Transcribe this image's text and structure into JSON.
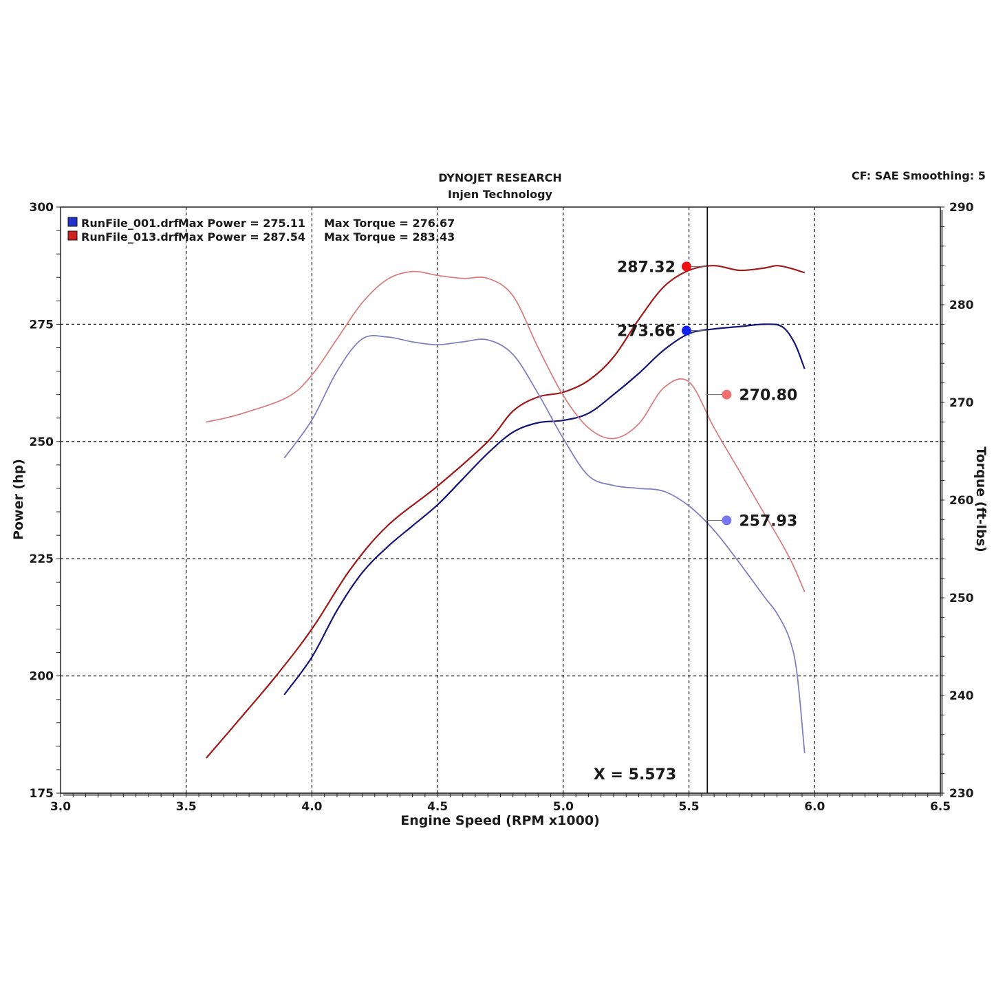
{
  "header": {
    "title": "DYNOJET RESEARCH",
    "subtitle": "Injen Technology",
    "info": "CF: SAE  Smoothing: 5"
  },
  "legend": [
    {
      "swatch": "#2233cc",
      "file": "RunFile_001.drf",
      "power": "Max Power = 275.11",
      "torque": "Max Torque = 276.67"
    },
    {
      "swatch": "#cc2222",
      "file": "RunFile_013.drf",
      "power": "Max Power = 287.54",
      "torque": "Max Torque = 283.43"
    }
  ],
  "cursor": {
    "label": "X = 5.573",
    "x": 5.573
  },
  "callouts": [
    {
      "text": "287.32",
      "color": "#ee1111"
    },
    {
      "text": "273.66",
      "color": "#1122ee"
    },
    {
      "text": "270.80",
      "color": "#f07070"
    },
    {
      "text": "257.93",
      "color": "#7777ee"
    }
  ],
  "chart_data": {
    "type": "line",
    "title": "DYNOJET RESEARCH",
    "subtitle": "Injen Technology",
    "xlabel": "Engine Speed (RPM x1000)",
    "ylabel": "Power (hp)",
    "y2label": "Torque (ft-lbs)",
    "xlim": [
      3.0,
      6.5
    ],
    "ylim": [
      175,
      300
    ],
    "y2lim": [
      230,
      290
    ],
    "x_ticks": [
      "3.0",
      "3.5",
      "4.0",
      "4.5",
      "5.0",
      "5.5",
      "6.0",
      "6.5"
    ],
    "y_ticks": [
      "175",
      "200",
      "225",
      "250",
      "275",
      "300"
    ],
    "y2_ticks": [
      "230",
      "240",
      "250",
      "260",
      "270",
      "280",
      "290"
    ],
    "grid": true,
    "legend_position": "top-left",
    "series": [
      {
        "name": "RunFile_013.drf",
        "quantity": "power",
        "axis": "left",
        "color": "#a01818",
        "width": 2.2,
        "x": [
          3.58,
          3.7,
          3.85,
          4.0,
          4.15,
          4.3,
          4.5,
          4.7,
          4.8,
          4.9,
          5.0,
          5.1,
          5.2,
          5.3,
          5.4,
          5.5,
          5.6,
          5.7,
          5.8,
          5.85,
          5.9,
          5.96
        ],
        "y": [
          182.5,
          190,
          199.5,
          210,
          222.5,
          232,
          240.5,
          250,
          256.5,
          259.5,
          260.5,
          263,
          268,
          276,
          283,
          286.5,
          287.5,
          286.5,
          287,
          287.5,
          287,
          286
        ]
      },
      {
        "name": "RunFile_001.drf",
        "quantity": "power",
        "axis": "left",
        "color": "#141478",
        "width": 2.2,
        "x": [
          3.89,
          4.0,
          4.1,
          4.2,
          4.3,
          4.4,
          4.5,
          4.6,
          4.7,
          4.8,
          4.9,
          5.0,
          5.1,
          5.2,
          5.3,
          5.4,
          5.5,
          5.6,
          5.7,
          5.8,
          5.87,
          5.92,
          5.96
        ],
        "y": [
          196,
          204,
          214,
          222,
          227.5,
          232,
          236.5,
          242,
          247.5,
          252,
          254,
          254.5,
          256,
          260,
          264.5,
          269.5,
          273,
          274,
          274.5,
          275,
          274.5,
          271,
          265.5
        ]
      },
      {
        "name": "RunFile_013.drf",
        "quantity": "torque",
        "axis": "right",
        "color": "#d88080",
        "width": 1.8,
        "x": [
          3.58,
          3.7,
          3.9,
          4.0,
          4.1,
          4.2,
          4.3,
          4.4,
          4.5,
          4.6,
          4.7,
          4.8,
          4.9,
          5.0,
          5.1,
          5.2,
          5.3,
          5.4,
          5.5,
          5.6,
          5.7,
          5.8,
          5.9,
          5.96
        ],
        "y": [
          268,
          268.7,
          270.5,
          272.8,
          276.5,
          280.2,
          282.6,
          283.4,
          283,
          282.7,
          282.7,
          280.9,
          275.6,
          270.7,
          267.4,
          266.3,
          267.8,
          271.5,
          272.1,
          267.4,
          263,
          258.6,
          254.1,
          250.6
        ]
      },
      {
        "name": "RunFile_001.drf",
        "quantity": "torque",
        "axis": "right",
        "color": "#8080c0",
        "width": 1.8,
        "x": [
          3.89,
          4.0,
          4.1,
          4.2,
          4.3,
          4.4,
          4.5,
          4.6,
          4.7,
          4.8,
          4.9,
          5.0,
          5.1,
          5.2,
          5.3,
          5.4,
          5.5,
          5.6,
          5.7,
          5.8,
          5.85,
          5.9,
          5.93,
          5.96
        ],
        "y": [
          264.3,
          268.2,
          273.2,
          276.5,
          276.7,
          276.2,
          275.9,
          276.2,
          276.4,
          274.9,
          270.9,
          266.3,
          262.5,
          261.5,
          261.2,
          260.9,
          259.4,
          256.9,
          253.6,
          250.1,
          248.4,
          245.8,
          242.2,
          234.1
        ]
      }
    ],
    "markers": [
      {
        "label": "287.32",
        "axis": "left",
        "x": 5.49,
        "y": 287.32,
        "color": "#ee1111"
      },
      {
        "label": "273.66",
        "axis": "left",
        "x": 5.49,
        "y": 273.66,
        "color": "#1122ee"
      },
      {
        "label": "270.80",
        "axis": "right",
        "x": 5.65,
        "y": 270.8,
        "color": "#f07070"
      },
      {
        "label": "257.93",
        "axis": "right",
        "x": 5.65,
        "y": 257.93,
        "color": "#7777ee"
      }
    ]
  }
}
